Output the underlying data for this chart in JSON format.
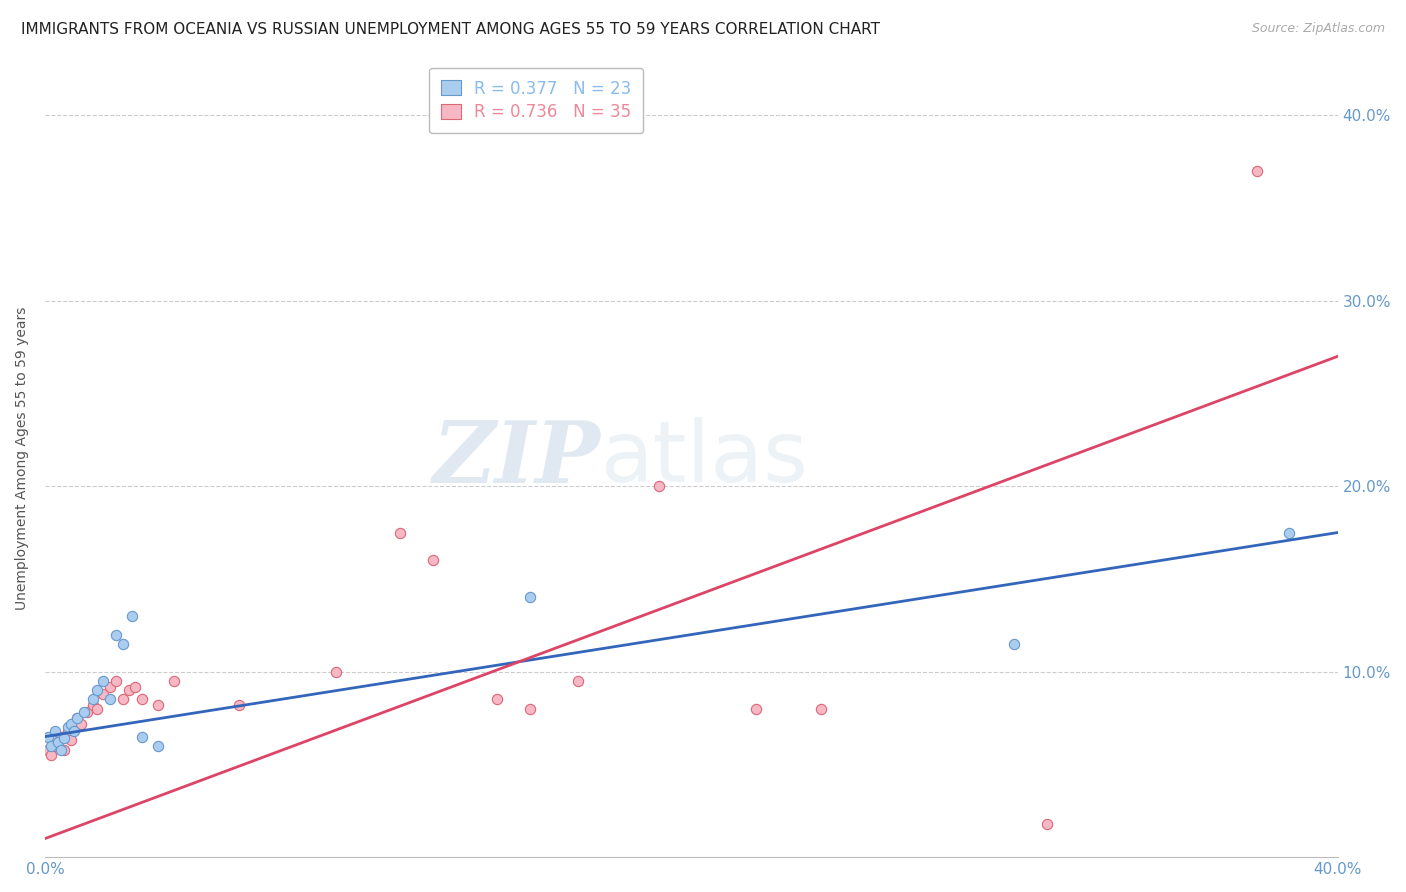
{
  "title": "IMMIGRANTS FROM OCEANIA VS RUSSIAN UNEMPLOYMENT AMONG AGES 55 TO 59 YEARS CORRELATION CHART",
  "source": "Source: ZipAtlas.com",
  "ylabel": "Unemployment Among Ages 55 to 59 years",
  "xlim": [
    0.0,
    0.4
  ],
  "ylim": [
    0.0,
    0.43
  ],
  "yticks": [
    0.1,
    0.2,
    0.3,
    0.4
  ],
  "ytick_labels": [
    "10.0%",
    "20.0%",
    "30.0%",
    "40.0%"
  ],
  "xticks": [
    0.0,
    0.05,
    0.1,
    0.15,
    0.2,
    0.25,
    0.3,
    0.35,
    0.4
  ],
  "xtick_labels_show": [
    "0.0%",
    "40.0%"
  ],
  "watermark_zip": "ZIP",
  "watermark_atlas": "atlas",
  "legend_entries": [
    {
      "label": "R = 0.377   N = 23",
      "color": "#88bbee"
    },
    {
      "label": "R = 0.736   N = 35",
      "color": "#ee8899"
    }
  ],
  "blue_scatter": [
    [
      0.001,
      0.065
    ],
    [
      0.002,
      0.06
    ],
    [
      0.003,
      0.068
    ],
    [
      0.004,
      0.062
    ],
    [
      0.005,
      0.058
    ],
    [
      0.006,
      0.064
    ],
    [
      0.007,
      0.07
    ],
    [
      0.008,
      0.072
    ],
    [
      0.009,
      0.068
    ],
    [
      0.01,
      0.075
    ],
    [
      0.012,
      0.078
    ],
    [
      0.015,
      0.085
    ],
    [
      0.016,
      0.09
    ],
    [
      0.018,
      0.095
    ],
    [
      0.02,
      0.085
    ],
    [
      0.022,
      0.12
    ],
    [
      0.024,
      0.115
    ],
    [
      0.027,
      0.13
    ],
    [
      0.03,
      0.065
    ],
    [
      0.035,
      0.06
    ],
    [
      0.15,
      0.14
    ],
    [
      0.3,
      0.115
    ],
    [
      0.385,
      0.175
    ]
  ],
  "pink_scatter": [
    [
      0.001,
      0.058
    ],
    [
      0.002,
      0.055
    ],
    [
      0.003,
      0.06
    ],
    [
      0.004,
      0.062
    ],
    [
      0.005,
      0.065
    ],
    [
      0.006,
      0.058
    ],
    [
      0.007,
      0.068
    ],
    [
      0.008,
      0.063
    ],
    [
      0.009,
      0.07
    ],
    [
      0.01,
      0.075
    ],
    [
      0.011,
      0.072
    ],
    [
      0.013,
      0.078
    ],
    [
      0.015,
      0.082
    ],
    [
      0.016,
      0.08
    ],
    [
      0.018,
      0.088
    ],
    [
      0.02,
      0.092
    ],
    [
      0.022,
      0.095
    ],
    [
      0.024,
      0.085
    ],
    [
      0.026,
      0.09
    ],
    [
      0.028,
      0.092
    ],
    [
      0.03,
      0.085
    ],
    [
      0.035,
      0.082
    ],
    [
      0.04,
      0.095
    ],
    [
      0.06,
      0.082
    ],
    [
      0.09,
      0.1
    ],
    [
      0.11,
      0.175
    ],
    [
      0.12,
      0.16
    ],
    [
      0.14,
      0.085
    ],
    [
      0.15,
      0.08
    ],
    [
      0.165,
      0.095
    ],
    [
      0.19,
      0.2
    ],
    [
      0.22,
      0.08
    ],
    [
      0.24,
      0.08
    ],
    [
      0.31,
      0.018
    ],
    [
      0.375,
      0.37
    ]
  ],
  "blue_line_x": [
    0.0,
    0.4
  ],
  "blue_line_y": [
    0.065,
    0.175
  ],
  "pink_line_x": [
    0.0,
    0.4
  ],
  "pink_line_y": [
    0.01,
    0.27
  ],
  "scatter_size": 55,
  "blue_color": "#aaccee",
  "pink_color": "#f5b8c4",
  "blue_edge": "#6699cc",
  "pink_edge": "#dd6677",
  "line_blue": "#3366bb",
  "line_pink": "#dd4466",
  "background_color": "#ffffff",
  "grid_color": "#cccccc",
  "title_fontsize": 11,
  "axis_label_fontsize": 10,
  "tick_fontsize": 11,
  "tick_color": "#6699cc"
}
